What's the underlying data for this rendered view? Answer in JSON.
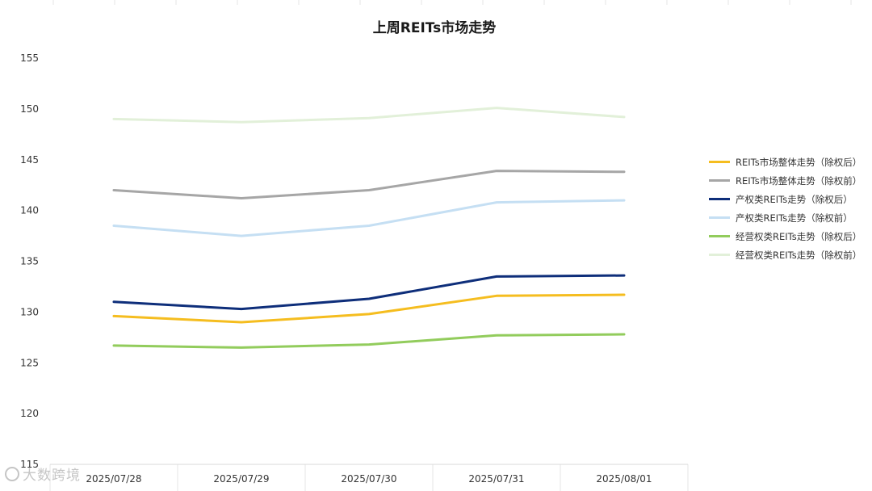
{
  "chart_data": {
    "type": "line",
    "title": "上周REITs市场走势",
    "xlabel": "",
    "ylabel": "",
    "categories": [
      "2025/07/28",
      "2025/07/29",
      "2025/07/30",
      "2025/07/31",
      "2025/08/01"
    ],
    "ylim": [
      115,
      155
    ],
    "yticks": [
      115,
      120,
      125,
      130,
      135,
      140,
      145,
      150,
      155
    ],
    "grid": "vertical",
    "legend_position": "right",
    "series": [
      {
        "name": "REITs市场整体走势（除权后）",
        "color": "#F5BD1F",
        "values": [
          129.6,
          129.0,
          129.8,
          131.6,
          131.7
        ]
      },
      {
        "name": "REITs市场整体走势（除权前）",
        "color": "#A6A6A6",
        "values": [
          142.0,
          141.2,
          142.0,
          143.9,
          143.8
        ]
      },
      {
        "name": "产权类REITs走势（除权后）",
        "color": "#0E2E7A",
        "values": [
          131.0,
          130.3,
          131.3,
          133.5,
          133.6
        ]
      },
      {
        "name": "产权类REITs走势（除权前）",
        "color": "#C5DFF3",
        "values": [
          138.5,
          137.5,
          138.5,
          140.8,
          141.0
        ]
      },
      {
        "name": "经营权类REITs走势（除权后）",
        "color": "#92CC5C",
        "values": [
          126.7,
          126.5,
          126.8,
          127.7,
          127.8
        ]
      },
      {
        "name": "经营权类REITs走势（除权前）",
        "color": "#E2F0D9",
        "values": [
          149.0,
          148.7,
          149.1,
          150.1,
          149.2
        ]
      }
    ]
  },
  "watermark": {
    "text": "大数跨境"
  }
}
